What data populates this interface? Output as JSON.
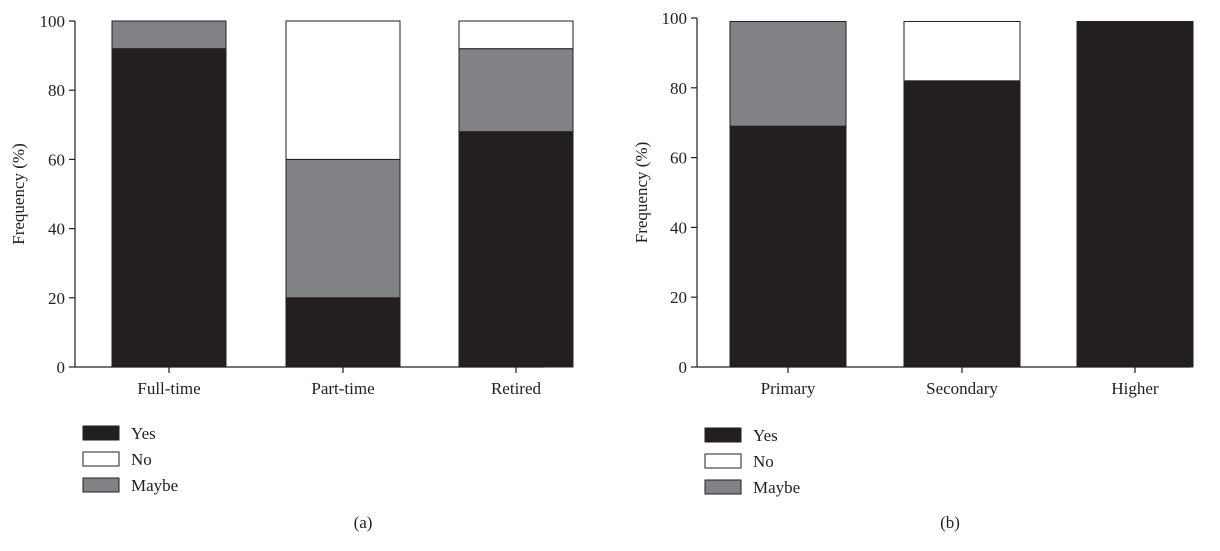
{
  "chart_data": [
    {
      "type": "bar",
      "stacked": true,
      "panel_label": "(a)",
      "ylabel": "Frequency (%)",
      "ylim": [
        0,
        100
      ],
      "yticks": [
        0,
        20,
        40,
        60,
        80,
        100
      ],
      "categories": [
        "Full-time",
        "Part-time",
        "Retired"
      ],
      "series": [
        {
          "name": "Yes",
          "color": "#231f20",
          "values": [
            92,
            20,
            68
          ]
        },
        {
          "name": "Maybe",
          "color": "#808285",
          "values": [
            8,
            40,
            24
          ]
        },
        {
          "name": "No",
          "color": "#ffffff",
          "values": [
            0,
            40,
            8
          ]
        }
      ],
      "legend": {
        "placement": "bottom-left",
        "order": [
          "Yes",
          "No",
          "Maybe"
        ]
      }
    },
    {
      "type": "bar",
      "stacked": true,
      "panel_label": "(b)",
      "ylabel": "Frequency (%)",
      "ylim": [
        0,
        100
      ],
      "yticks": [
        0,
        20,
        40,
        60,
        80,
        100
      ],
      "categories": [
        "Primary",
        "Secondary",
        "Higher"
      ],
      "series": [
        {
          "name": "Yes",
          "color": "#231f20",
          "values": [
            69,
            82,
            99
          ]
        },
        {
          "name": "Maybe",
          "color": "#808285",
          "values": [
            30,
            0,
            0
          ]
        },
        {
          "name": "No",
          "color": "#ffffff",
          "values": [
            0,
            17,
            0
          ]
        }
      ],
      "legend": {
        "placement": "bottom-left",
        "order": [
          "Yes",
          "No",
          "Maybe"
        ]
      }
    }
  ]
}
